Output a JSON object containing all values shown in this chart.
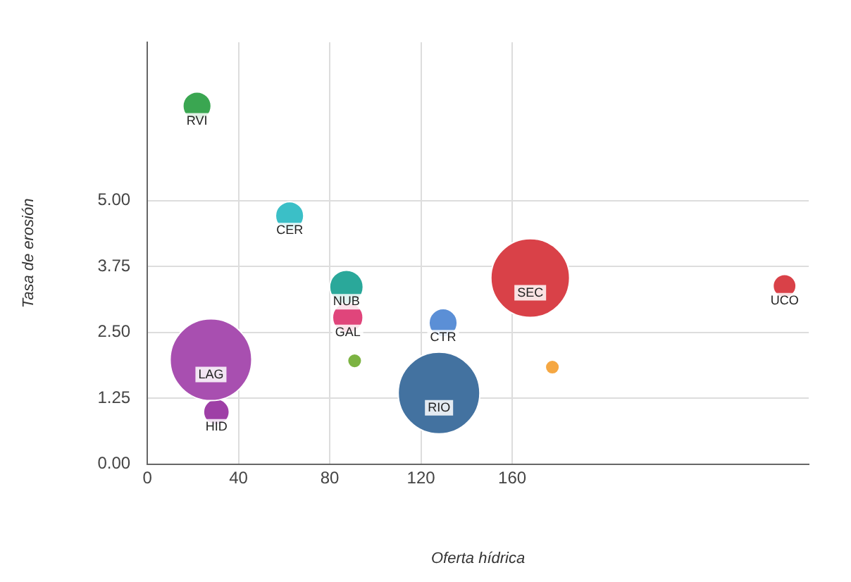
{
  "chart_data": {
    "type": "bubble",
    "xlabel": "Oferta hídrica",
    "ylabel": "Tasa de erosión",
    "xlim": [
      0,
      290
    ],
    "xticks": [
      0,
      40,
      80,
      120,
      160
    ],
    "ylim": [
      0,
      8
    ],
    "yticks": [
      {
        "value": 0,
        "label": "0.00"
      },
      {
        "value": 1.25,
        "label": "1.25"
      },
      {
        "value": 2.5,
        "label": "2.50"
      },
      {
        "value": 3.75,
        "label": "3.75"
      },
      {
        "value": 5,
        "label": "5.00"
      }
    ],
    "grid": true,
    "legend": false,
    "series": [
      {
        "name": "RVI",
        "color": "#3aa651",
        "x": [
          21.8
        ],
        "values": [
          6.79
        ],
        "sizes": [
          0.12
        ]
      },
      {
        "name": "CER",
        "color": "#3bbfc7",
        "x": [
          62.4
        ],
        "values": [
          4.71
        ],
        "sizes": [
          0.12
        ]
      },
      {
        "name": "NUB",
        "color": "#2aa89a",
        "x": [
          87.3
        ],
        "values": [
          3.36
        ],
        "sizes": [
          0.17
        ]
      },
      {
        "name": "GAL",
        "color": "#e0457b",
        "x": [
          87.9
        ],
        "values": [
          2.78
        ],
        "sizes": [
          0.14
        ]
      },
      {
        "name": "LAG",
        "color": "#a84fb0",
        "x": [
          27.9
        ],
        "values": [
          1.98
        ],
        "sizes": [
          1
        ]
      },
      {
        "name": "HID",
        "color": "#9e3fa6",
        "x": [
          30.3
        ],
        "values": [
          0.99
        ],
        "sizes": [
          0.1
        ]
      },
      {
        "color": "#7cb342",
        "x": [
          90.9
        ],
        "values": [
          1.96
        ],
        "sizes": [
          0.03
        ]
      },
      {
        "name": "RIO",
        "color": "#4372a0",
        "x": [
          127.9
        ],
        "values": [
          1.35
        ],
        "sizes": [
          1
        ]
      },
      {
        "name": "CTR",
        "color": "#5b8fd6",
        "x": [
          129.7
        ],
        "values": [
          2.68
        ],
        "sizes": [
          0.12
        ]
      },
      {
        "name": "SEC",
        "color": "#d94148",
        "x": [
          167.9
        ],
        "values": [
          3.53
        ],
        "sizes": [
          0.93
        ]
      },
      {
        "color": "#f5a742",
        "x": [
          177.6
        ],
        "values": [
          1.84
        ],
        "sizes": [
          0.03
        ]
      },
      {
        "name": "UCO",
        "color": "#d94148",
        "x": [
          279.4
        ],
        "values": [
          3.38
        ],
        "sizes": [
          0.08
        ]
      }
    ]
  }
}
